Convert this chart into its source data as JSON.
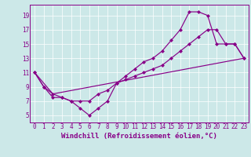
{
  "bg_color": "#cce8e8",
  "line_color": "#880088",
  "xlabel": "Windchill (Refroidissement éolien,°C)",
  "xlim_min": -0.5,
  "xlim_max": 23.5,
  "ylim_min": 4.0,
  "ylim_max": 20.5,
  "xticks": [
    0,
    1,
    2,
    3,
    4,
    5,
    6,
    7,
    8,
    9,
    10,
    11,
    12,
    13,
    14,
    15,
    16,
    17,
    18,
    19,
    20,
    21,
    22,
    23
  ],
  "yticks": [
    5,
    7,
    9,
    11,
    13,
    15,
    17,
    19
  ],
  "line1_x": [
    0,
    1,
    2,
    3,
    4,
    5,
    6,
    7,
    8,
    9,
    10,
    11,
    12,
    13,
    14,
    15,
    16,
    17,
    18,
    19,
    20,
    21,
    22,
    23
  ],
  "line1_y": [
    11,
    9,
    8,
    7.5,
    7,
    6,
    5,
    6,
    7,
    9.5,
    10.5,
    11.5,
    12.5,
    13,
    14,
    15.5,
    17,
    19.5,
    19.5,
    19,
    15,
    15,
    15,
    13
  ],
  "line2_x": [
    0,
    1,
    2,
    3,
    4,
    5,
    6,
    7,
    8,
    9,
    10,
    11,
    12,
    13,
    14,
    15,
    16,
    17,
    18,
    19,
    20,
    21,
    22,
    23
  ],
  "line2_y": [
    11,
    9,
    7.5,
    7.5,
    7,
    7,
    7,
    8,
    8.5,
    9.5,
    10,
    10.5,
    11,
    11.5,
    12,
    13,
    14,
    15,
    16,
    17,
    17,
    15,
    15,
    13
  ],
  "line3_x": [
    0,
    2,
    23
  ],
  "line3_y": [
    11,
    8,
    13
  ],
  "marker_size": 2.5,
  "line_width": 0.85,
  "tick_font_size": 5.5,
  "xlabel_font_size": 6.5,
  "grid_color": "#aad8d8"
}
